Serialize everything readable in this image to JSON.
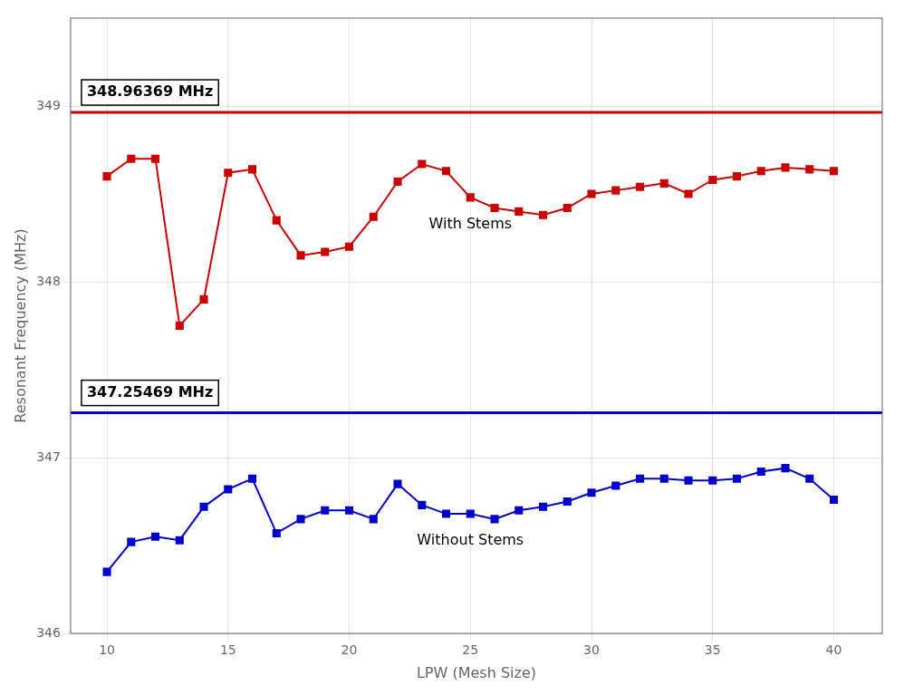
{
  "chart_data": {
    "type": "line",
    "xlabel": "LPW (Mesh Size)",
    "ylabel": "Resonant Frequency (MHz)",
    "x": [
      10,
      11,
      12,
      13,
      14,
      15,
      16,
      17,
      18,
      19,
      20,
      21,
      22,
      23,
      24,
      25,
      26,
      27,
      28,
      29,
      30,
      31,
      32,
      33,
      34,
      35,
      36,
      37,
      38,
      39,
      40
    ],
    "xlim": [
      8.5,
      42
    ],
    "ylim": [
      346,
      349.5
    ],
    "xticks": [
      10,
      15,
      20,
      25,
      30,
      35,
      40
    ],
    "yticks": [
      346,
      347,
      348,
      349
    ],
    "grid": true,
    "series": [
      {
        "name": "With Stems",
        "color": "#CC0000",
        "marker": "square",
        "values": [
          348.6,
          348.7,
          348.7,
          347.75,
          347.9,
          348.62,
          348.64,
          348.35,
          348.15,
          348.17,
          348.2,
          348.37,
          348.57,
          348.67,
          348.63,
          348.48,
          348.42,
          348.4,
          348.38,
          348.42,
          348.5,
          348.52,
          348.54,
          348.56,
          348.5,
          348.58,
          348.6,
          348.63,
          348.65,
          348.64,
          348.63
        ]
      },
      {
        "name": "Without Stems",
        "color": "#0000CC",
        "marker": "square",
        "values": [
          346.35,
          346.52,
          346.55,
          346.53,
          346.72,
          346.82,
          346.88,
          346.57,
          346.65,
          346.7,
          346.7,
          346.65,
          346.85,
          346.73,
          346.68,
          346.68,
          346.65,
          346.7,
          346.72,
          346.75,
          346.8,
          346.84,
          346.88,
          346.88,
          346.87,
          346.87,
          346.88,
          346.92,
          346.94,
          346.88,
          346.76
        ]
      }
    ],
    "hlines": [
      {
        "value": 348.96369,
        "color": "#CC0000",
        "label": "348.96369 MHz"
      },
      {
        "value": 347.25469,
        "color": "#0000CC",
        "label": "347.25469 MHz"
      }
    ]
  }
}
